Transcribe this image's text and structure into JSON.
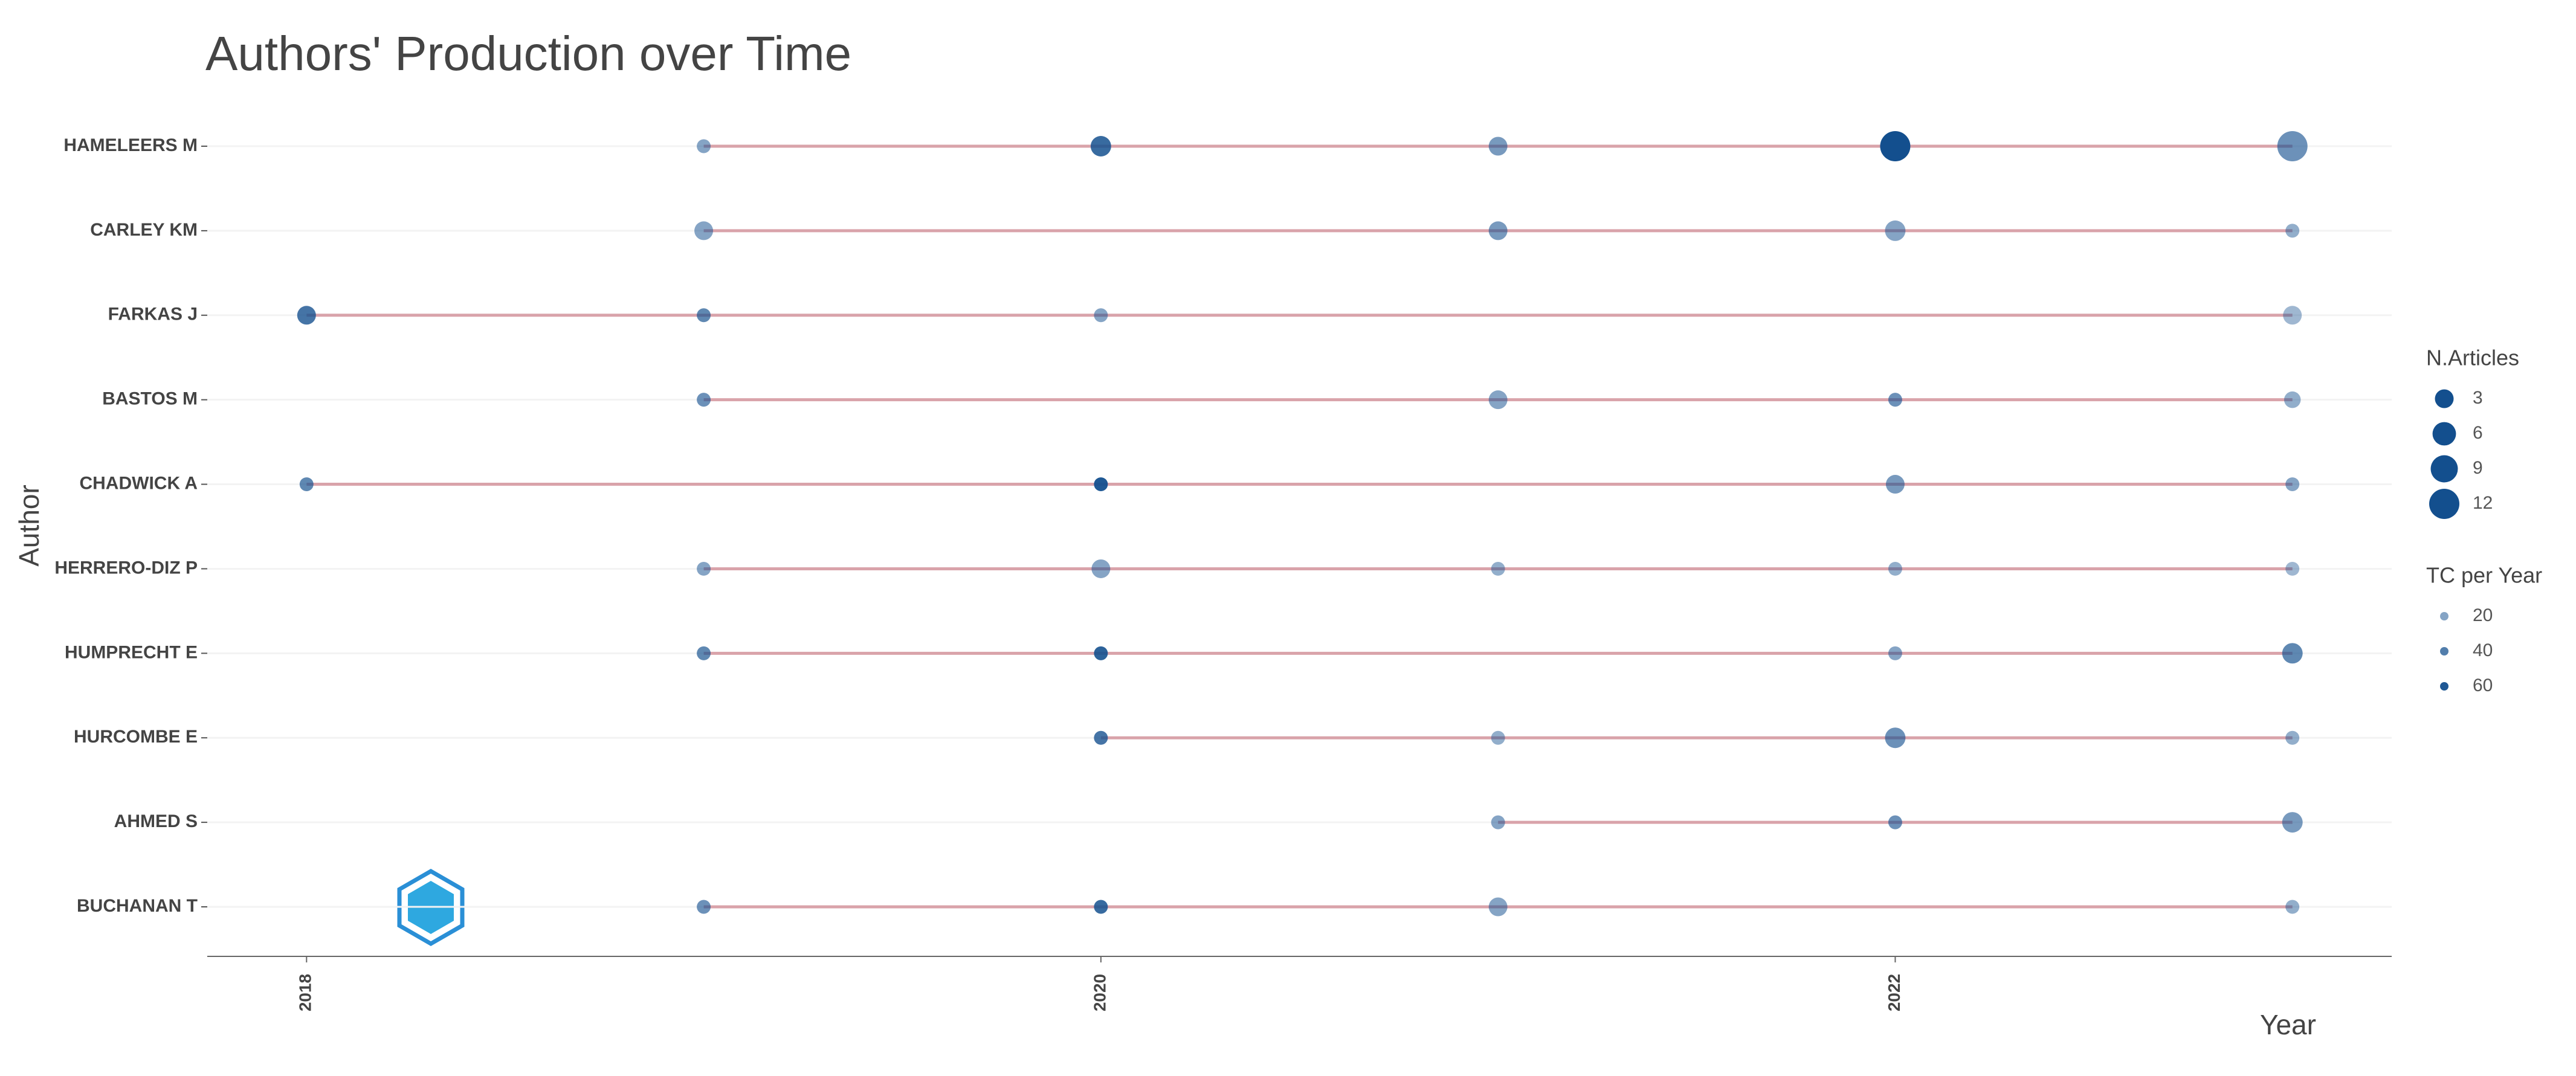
{
  "chart_data": {
    "type": "scatter",
    "title": "Authors' Production over Time",
    "x_label": "Year",
    "y_label": "Author",
    "xlim": [
      2017.75,
      2023.25
    ],
    "xticks": [
      2018,
      2020,
      2022
    ],
    "color": "#134f8e",
    "line_color": "#d9a3aa",
    "size_legend": {
      "title": "N.Articles",
      "ticks": [
        3,
        6,
        9,
        12
      ]
    },
    "color_legend": {
      "title": "TC per Year",
      "ticks": [
        20,
        40,
        60
      ]
    },
    "series": [
      {
        "name": "HAMELEERS M",
        "x": [
          2019,
          2020,
          2021,
          2022,
          2023
        ],
        "n_articles": [
          1,
          4,
          3,
          12,
          12
        ],
        "tc_per_year": [
          20,
          50,
          25,
          70,
          30
        ]
      },
      {
        "name": "CARLEY KM",
        "x": [
          2019,
          2021,
          2022,
          2023
        ],
        "n_articles": [
          3,
          3,
          4,
          1
        ],
        "tc_per_year": [
          20,
          25,
          20,
          15
        ]
      },
      {
        "name": "FARKAS J",
        "x": [
          2018,
          2019,
          2020,
          2023
        ],
        "n_articles": [
          3,
          1,
          1,
          3
        ],
        "tc_per_year": [
          45,
          35,
          20,
          10
        ]
      },
      {
        "name": "BASTOS M",
        "x": [
          2019,
          2021,
          2022,
          2023
        ],
        "n_articles": [
          1,
          3,
          1,
          2
        ],
        "tc_per_year": [
          30,
          20,
          30,
          15
        ]
      },
      {
        "name": "CHADWICK A",
        "x": [
          2018,
          2020,
          2022,
          2023
        ],
        "n_articles": [
          1,
          1,
          3,
          1
        ],
        "tc_per_year": [
          35,
          60,
          25,
          20
        ]
      },
      {
        "name": "HERRERO-DIZ P",
        "x": [
          2019,
          2020,
          2021,
          2022,
          2023
        ],
        "n_articles": [
          1,
          3,
          1,
          1,
          1
        ],
        "tc_per_year": [
          20,
          20,
          15,
          15,
          10
        ]
      },
      {
        "name": "HUMPRECHT E",
        "x": [
          2019,
          2020,
          2022,
          2023
        ],
        "n_articles": [
          1,
          1,
          1,
          4
        ],
        "tc_per_year": [
          35,
          55,
          20,
          35
        ]
      },
      {
        "name": "HURCOMBE E",
        "x": [
          2020,
          2021,
          2022,
          2023
        ],
        "n_articles": [
          1,
          1,
          4,
          1
        ],
        "tc_per_year": [
          45,
          15,
          30,
          15
        ]
      },
      {
        "name": "AHMED S",
        "x": [
          2021,
          2022,
          2023
        ],
        "n_articles": [
          1,
          1,
          4
        ],
        "tc_per_year": [
          20,
          30,
          25
        ]
      },
      {
        "name": "BUCHANAN T",
        "x": [
          2019,
          2020,
          2021,
          2023
        ],
        "n_articles": [
          1,
          1,
          3,
          1
        ],
        "tc_per_year": [
          30,
          50,
          20,
          15
        ]
      }
    ]
  }
}
